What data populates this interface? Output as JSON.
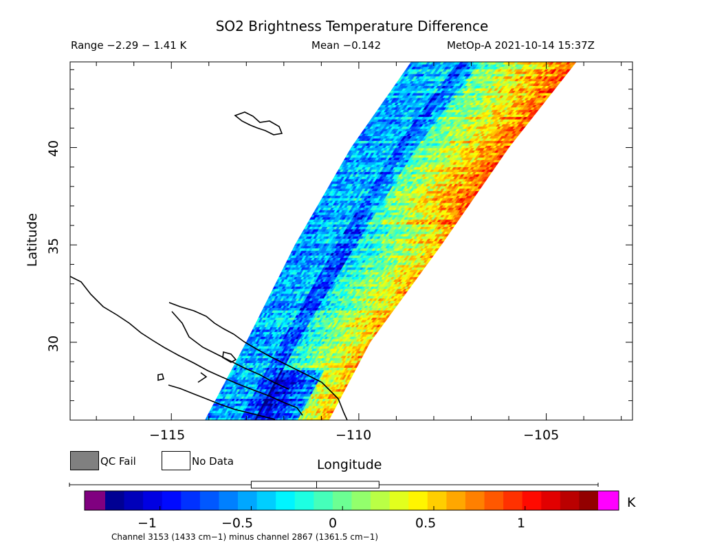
{
  "header": {
    "title": "SO2 Brightness Temperature Difference",
    "range": "Range −2.29 − 1.41 K",
    "mean": "Mean −0.142",
    "satellite": "MetOp-A 2021-10-14 15:37Z"
  },
  "axes": {
    "xlabel": "Longitude",
    "ylabel": "Latitude",
    "x_ticks": [
      "−115",
      "−110",
      "−105"
    ],
    "y_ticks": [
      "30",
      "35",
      "40"
    ],
    "xlim": [
      -117.7,
      -102.7
    ],
    "ylim": [
      26.0,
      44.4
    ]
  },
  "legend": {
    "qc_fail_label": "QC Fail",
    "no_data_label": "No Data",
    "qc_fail_color": "#808080",
    "no_data_color": "#ffffff"
  },
  "colorbar": {
    "unit": "K",
    "ticks": [
      "−1",
      "−0.5",
      "0",
      "0.5",
      "1"
    ],
    "tick_values": [
      -1,
      -0.5,
      0,
      0.5,
      1
    ],
    "range": [
      -1.3,
      1.4
    ],
    "low_cap_color": "#800080",
    "high_cap_color": "#ff00ff",
    "boxplot": {
      "whisker_low": -1.3,
      "q1": -0.5,
      "median": -0.142,
      "q3": 0.2,
      "whisker_high": 1.4
    }
  },
  "footer": {
    "channels": "Channel 3153 (1433 cm−1) minus channel 2867 (1361.5 cm−1)"
  },
  "chart_data": {
    "type": "heatmap",
    "title": "SO2 Brightness Temperature Difference",
    "xlabel": "Longitude",
    "ylabel": "Latitude",
    "xlim": [
      -117.7,
      -102.7
    ],
    "ylim": [
      26.0,
      44.4
    ],
    "colorbar_range": [
      -1.3,
      1.4
    ],
    "unit": "K",
    "swath_edges": [
      {
        "lat": 26.0,
        "west_lon": -114.1,
        "east_lon": -110.8
      },
      {
        "lat": 30.0,
        "west_lon": -113.0,
        "east_lon": -109.7
      },
      {
        "lat": 35.0,
        "west_lon": -111.7,
        "east_lon": -107.8
      },
      {
        "lat": 40.0,
        "west_lon": -110.2,
        "east_lon": -106.0
      },
      {
        "lat": 44.4,
        "west_lon": -108.6,
        "east_lon": -104.2
      }
    ]
  }
}
